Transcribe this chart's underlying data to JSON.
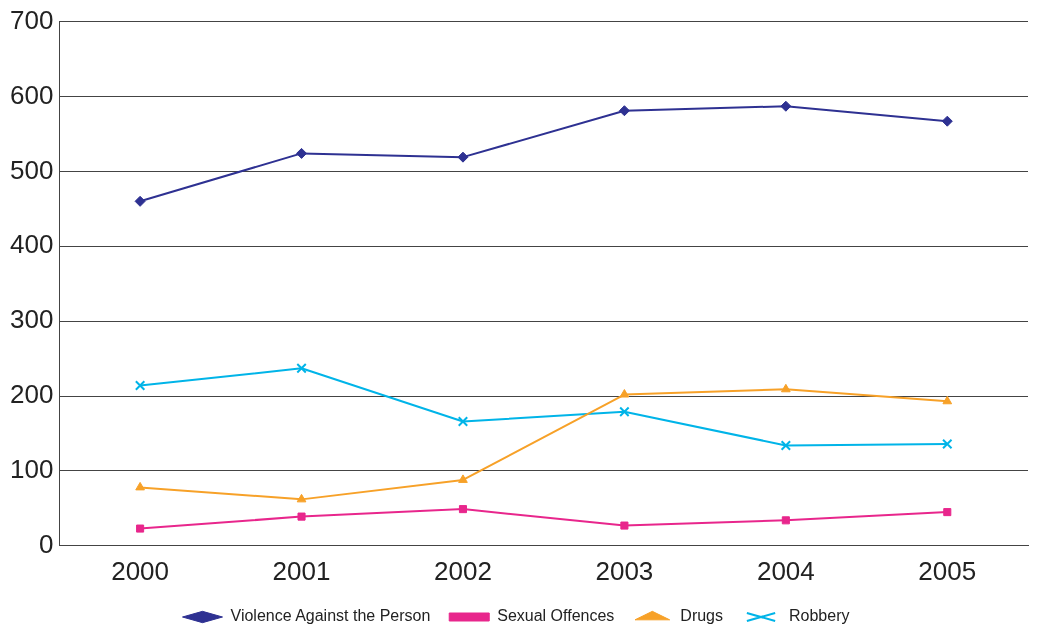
{
  "chart_data": {
    "type": "line",
    "categories": [
      "2000",
      "2001",
      "2002",
      "2003",
      "2004",
      "2005"
    ],
    "series": [
      {
        "name": "Violence Against the Person",
        "color": "#2e3192",
        "marker": "diamond",
        "values": [
          460,
          524,
          519,
          581,
          587,
          567
        ]
      },
      {
        "name": "Sexual Offences",
        "color": "#e8268c",
        "marker": "square",
        "values": [
          23,
          39,
          49,
          27,
          34,
          45
        ]
      },
      {
        "name": "Drugs",
        "color": "#f7a128",
        "marker": "triangle",
        "values": [
          78,
          62,
          88,
          202,
          209,
          193
        ]
      },
      {
        "name": "Robbery",
        "color": "#00b4e8",
        "marker": "cross",
        "values": [
          214,
          237,
          166,
          179,
          134,
          136
        ]
      }
    ],
    "ylim": [
      0,
      700
    ],
    "yticks": [
      0,
      100,
      200,
      300,
      400,
      500,
      600,
      700
    ],
    "grid": "y",
    "legend": "bottom",
    "line_style": "solid"
  }
}
